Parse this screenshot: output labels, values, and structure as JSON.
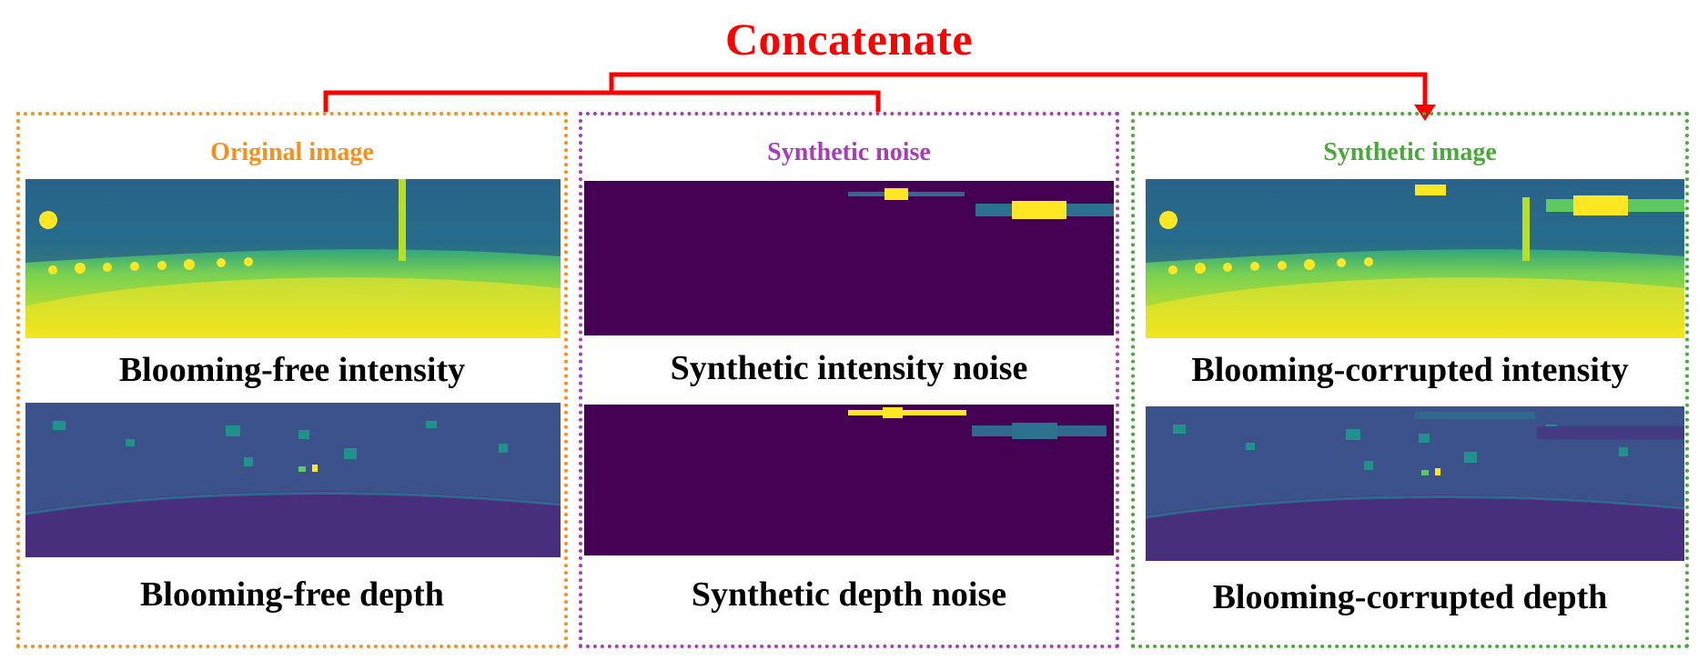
{
  "title": "Concatenate",
  "colors": {
    "concat": "#ff0000",
    "original": "#f5901e",
    "noise": "#a63fb5",
    "synthetic": "#4aa93a",
    "viridis_dark": "#440154",
    "viridis_blue": "#3a528b",
    "viridis_teal": "#21918c",
    "viridis_green": "#5ec962",
    "viridis_yellow": "#fde725"
  },
  "panels": {
    "original": {
      "title": "Original image",
      "intensity_caption": "Blooming-free intensity",
      "depth_caption": "Blooming-free depth"
    },
    "noise": {
      "title": "Synthetic noise",
      "intensity_caption": "Synthetic intensity noise",
      "depth_caption": "Synthetic depth noise"
    },
    "synthetic": {
      "title": "Synthetic image",
      "intensity_caption": "Blooming-corrupted intensity",
      "depth_caption": "Blooming-corrupted depth"
    }
  }
}
